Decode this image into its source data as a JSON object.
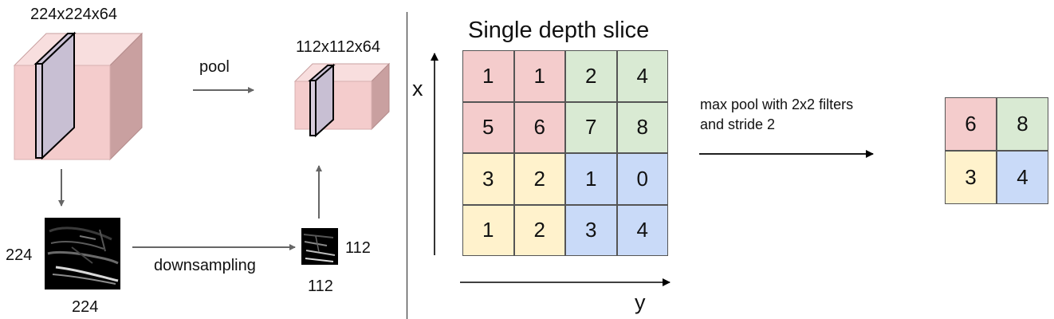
{
  "left_panel": {
    "input_volume_label": "224x224x64",
    "pool_label": "pool",
    "output_volume_label": "112x112x64",
    "input_slice_height_label": "224",
    "input_slice_width_label": "224",
    "downsampling_label": "downsampling",
    "output_slice_height_label": "112",
    "output_slice_width_label": "112"
  },
  "right_panel": {
    "title": "Single depth slice",
    "x_axis_label": "x",
    "y_axis_label": "y",
    "operation_line1": "max pool with 2x2 filters",
    "operation_line2": "and stride 2",
    "input_grid": [
      [
        "1",
        "1",
        "2",
        "4"
      ],
      [
        "5",
        "6",
        "7",
        "8"
      ],
      [
        "3",
        "2",
        "1",
        "0"
      ],
      [
        "1",
        "2",
        "3",
        "4"
      ]
    ],
    "output_grid": [
      [
        "6",
        "8"
      ],
      [
        "3",
        "4"
      ]
    ]
  },
  "colors": {
    "red_quadrant": "#f4cccc",
    "green_quadrant": "#d9ead3",
    "yellow_quadrant": "#fff2cc",
    "blue_quadrant": "#c9daf8",
    "volume_front": "#f4cccc",
    "volume_top": "#f8dede",
    "volume_side": "#c9a0a0",
    "arrow": "#666666"
  }
}
